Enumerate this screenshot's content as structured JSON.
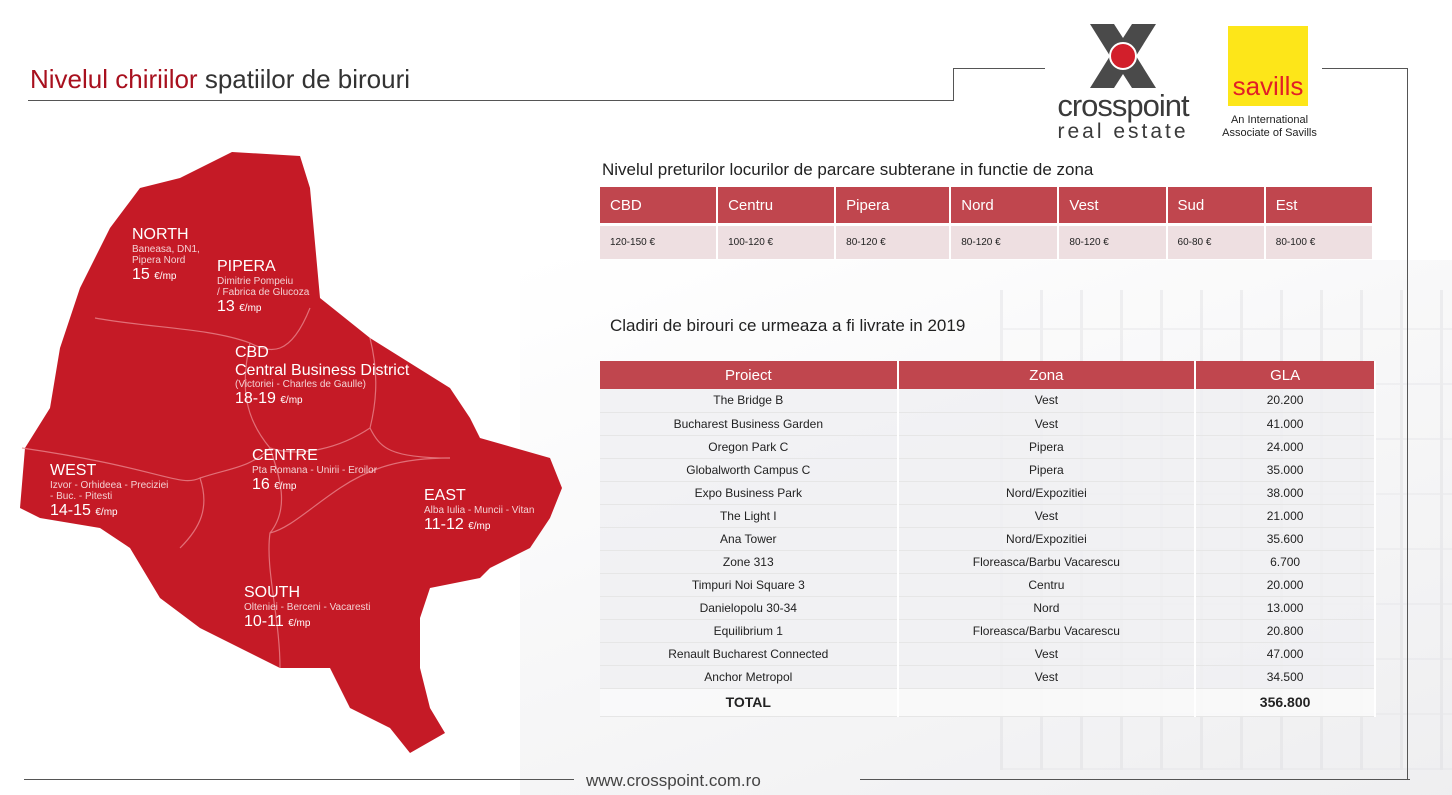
{
  "title": {
    "highlight": "Nivelul chiriilor",
    "rest": " spatiilor de birouri"
  },
  "logo": {
    "crosspoint_name": "crosspoint",
    "crosspoint_sub": "real estate",
    "savills_word": "savills",
    "savills_sub_1": "An International",
    "savills_sub_2": "Associate of Savills"
  },
  "colors": {
    "accent": "#a8101e",
    "map_red": "#c51a26",
    "table_header": "#c0464e"
  },
  "map": {
    "zones": [
      {
        "name": "NORTH",
        "desc": "Baneasa, DN1,",
        "desc2": "Pipera Nord",
        "price": "15",
        "unit": "€/mp"
      },
      {
        "name": "PIPERA",
        "desc": "Dimitrie Pompeiu",
        "desc2": "/ Fabrica de Glucoza",
        "price": "13",
        "unit": "€/mp"
      },
      {
        "name": "CBD",
        "name2": "Central Business District",
        "desc": "(Victoriei - Charles de Gaulle)",
        "price": "18-19",
        "unit": "€/mp"
      },
      {
        "name": "CENTRE",
        "desc": "Pta Romana - Unirii - Eroilor",
        "price": "16",
        "unit": "€/mp"
      },
      {
        "name": "WEST",
        "desc": "Izvor - Orhideea - Preciziei",
        "desc2": "- Buc. - Pitesti",
        "price": "14-15",
        "unit": "€/mp"
      },
      {
        "name": "EAST",
        "desc": "Alba Iulia - Muncii - Vitan",
        "price": "11-12",
        "unit": "€/mp"
      },
      {
        "name": "SOUTH",
        "desc": "Olteniei - Berceni - Vacaresti",
        "price": "10-11",
        "unit": "€/mp"
      }
    ]
  },
  "parking": {
    "title": "Nivelul preturilor locurilor de parcare subterane in functie de zona",
    "headers": [
      "CBD",
      "Centru",
      "Pipera",
      "Nord",
      "Vest",
      "Sud",
      "Est"
    ],
    "values": [
      "120-150 €",
      "100-120 €",
      "80-120 €",
      "80-120 €",
      "80-120 €",
      "60-80 €",
      "80-100 €"
    ]
  },
  "buildings": {
    "title": "Cladiri de birouri ce urmeaza a fi livrate in 2019",
    "headers": [
      "Proiect",
      "Zona",
      "GLA"
    ],
    "rows": [
      [
        "The Bridge B",
        "Vest",
        "20.200"
      ],
      [
        "Bucharest Business Garden",
        "Vest",
        "41.000"
      ],
      [
        "Oregon Park C",
        "Pipera",
        "24.000"
      ],
      [
        "Globalworth Campus C",
        "Pipera",
        "35.000"
      ],
      [
        "Expo Business Park",
        "Nord/Expozitiei",
        "38.000"
      ],
      [
        "The Light I",
        "Vest",
        "21.000"
      ],
      [
        "Ana Tower",
        "Nord/Expozitiei",
        "35.600"
      ],
      [
        "Zone 313",
        "Floreasca/Barbu Vacarescu",
        "6.700"
      ],
      [
        "Timpuri Noi Square 3",
        "Centru",
        "20.000"
      ],
      [
        "Danielopolu 30-34",
        "Nord",
        "13.000"
      ],
      [
        "Equilibrium  1",
        "Floreasca/Barbu Vacarescu",
        "20.800"
      ],
      [
        "Renault Bucharest Connected",
        "Vest",
        "47.000"
      ],
      [
        "Anchor Metropol",
        "Vest",
        "34.500"
      ]
    ],
    "total_label": "TOTAL",
    "total_value": "356.800"
  },
  "footer": {
    "url": "www.crosspoint.com.ro"
  }
}
